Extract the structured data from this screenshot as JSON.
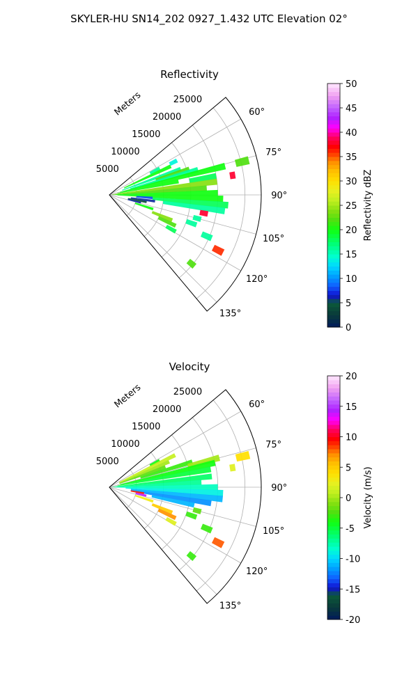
{
  "figure": {
    "title": "SKYLER-HU  SN14_202  0927_1.432 UTC Elevation 02°"
  },
  "chart_data": [
    {
      "type": "heatmap",
      "subtype": "polar-sector",
      "title": "Reflectivity",
      "radial_label": "Meters",
      "radial_ticks": [
        "5000",
        "10000",
        "15000",
        "20000",
        "25000"
      ],
      "radial_range": [
        0,
        28000
      ],
      "angle_ticks": [
        "60°",
        "75°",
        "90°",
        "105°",
        "120°",
        "135°"
      ],
      "angle_range": [
        50,
        140
      ],
      "grid": true,
      "colorbar": {
        "label": "Reflectivity dBZ",
        "range": [
          0,
          50
        ],
        "ticks": [
          "0",
          "5",
          "10",
          "15",
          "20",
          "25",
          "30",
          "35",
          "40",
          "45",
          "50"
        ]
      },
      "echoes": [
        {
          "az": 62,
          "r0": 8500,
          "r1": 10500,
          "v": 16
        },
        {
          "az": 63,
          "r0": 12500,
          "r1": 14000,
          "v": 14
        },
        {
          "az": 65,
          "r0": 3000,
          "r1": 12500,
          "v": 20
        },
        {
          "az": 70,
          "r0": 2500,
          "r1": 14000,
          "v": 16
        },
        {
          "az": 72,
          "r0": 9000,
          "r1": 15500,
          "v": 22
        },
        {
          "az": 74,
          "r0": 4000,
          "r1": 17000,
          "v": 16
        },
        {
          "az": 76,
          "r0": 2000,
          "r1": 22000,
          "v": 20
        },
        {
          "az": 76,
          "r0": 24000,
          "r1": 26500,
          "v": 22
        },
        {
          "az": 79,
          "r0": 1500,
          "r1": 13000,
          "v": 20
        },
        {
          "az": 80,
          "r0": 15000,
          "r1": 20000,
          "v": 18
        },
        {
          "az": 81,
          "r0": 22500,
          "r1": 23500,
          "v": 38
        },
        {
          "az": 83,
          "r0": 500,
          "r1": 20000,
          "v": 24
        },
        {
          "az": 86,
          "r0": 500,
          "r1": 18000,
          "v": 22
        },
        {
          "az": 89,
          "r0": 1000,
          "r1": 20000,
          "v": 20
        },
        {
          "az": 92,
          "r0": 1500,
          "r1": 21000,
          "v": 20
        },
        {
          "az": 94,
          "r0": 5000,
          "r1": 8000,
          "v": 8
        },
        {
          "az": 95,
          "r0": 8000,
          "r1": 22000,
          "v": 18
        },
        {
          "az": 98,
          "r0": 4000,
          "r1": 8500,
          "v": 6
        },
        {
          "az": 98,
          "r0": 10000,
          "r1": 21500,
          "v": 16
        },
        {
          "az": 101,
          "r0": 3500,
          "r1": 7000,
          "v": 4
        },
        {
          "az": 101,
          "r0": 17000,
          "r1": 18500,
          "v": 38
        },
        {
          "az": 104,
          "r0": 3500,
          "r1": 6000,
          "v": 6
        },
        {
          "az": 105,
          "r0": 16000,
          "r1": 17500,
          "v": 16
        },
        {
          "az": 108,
          "r0": 5000,
          "r1": 8500,
          "v": 20
        },
        {
          "az": 109,
          "r0": 15000,
          "r1": 17000,
          "v": 16
        },
        {
          "az": 112,
          "r0": 8500,
          "r1": 12500,
          "v": 24
        },
        {
          "az": 113,
          "r0": 18500,
          "r1": 20500,
          "v": 16
        },
        {
          "az": 115,
          "r0": 10000,
          "r1": 13500,
          "v": 22
        },
        {
          "az": 117,
          "r0": 21500,
          "r1": 23500,
          "v": 36
        },
        {
          "az": 119,
          "r0": 12000,
          "r1": 14000,
          "v": 18
        },
        {
          "az": 130,
          "r0": 19000,
          "r1": 20500,
          "v": 22
        }
      ]
    },
    {
      "type": "heatmap",
      "subtype": "polar-sector",
      "title": "Velocity",
      "radial_label": "Meters",
      "radial_ticks": [
        "5000",
        "10000",
        "15000",
        "20000",
        "25000"
      ],
      "radial_range": [
        0,
        28000
      ],
      "angle_ticks": [
        "60°",
        "75°",
        "90°",
        "105°",
        "120°",
        "135°"
      ],
      "angle_range": [
        50,
        140
      ],
      "grid": true,
      "colorbar": {
        "label": "Velocity (m/s)",
        "range": [
          -20,
          20
        ],
        "ticks": [
          "-20",
          "-15",
          "-10",
          "-5",
          "0",
          "5",
          "10",
          "15",
          "20"
        ]
      },
      "echoes": [
        {
          "az": 62,
          "r0": 8500,
          "r1": 10500,
          "v": -4
        },
        {
          "az": 64,
          "r0": 2000,
          "r1": 13500,
          "v": 1
        },
        {
          "az": 67,
          "r0": 2000,
          "r1": 12000,
          "v": 0
        },
        {
          "az": 70,
          "r0": 2000,
          "r1": 11000,
          "v": -2
        },
        {
          "az": 73,
          "r0": 6000,
          "r1": 16000,
          "v": -3
        },
        {
          "az": 75,
          "r0": 15000,
          "r1": 21000,
          "v": 0
        },
        {
          "az": 77,
          "r0": 2000,
          "r1": 20000,
          "v": -4
        },
        {
          "az": 77,
          "r0": 24000,
          "r1": 26500,
          "v": 4
        },
        {
          "az": 80,
          "r0": 1500,
          "r1": 19000,
          "v": -5
        },
        {
          "az": 81,
          "r0": 22500,
          "r1": 23500,
          "v": 2
        },
        {
          "az": 84,
          "r0": 500,
          "r1": 19000,
          "v": -6
        },
        {
          "az": 87,
          "r0": 500,
          "r1": 17000,
          "v": -7
        },
        {
          "az": 90,
          "r0": 1000,
          "r1": 20000,
          "v": -8
        },
        {
          "az": 93,
          "r0": 3000,
          "r1": 21000,
          "v": -9
        },
        {
          "az": 96,
          "r0": 4000,
          "r1": 21000,
          "v": -11
        },
        {
          "az": 99,
          "r0": 4000,
          "r1": 19000,
          "v": -12
        },
        {
          "az": 100,
          "r0": 4000,
          "r1": 6500,
          "v": 9
        },
        {
          "az": 102,
          "r0": 8000,
          "r1": 16000,
          "v": -11
        },
        {
          "az": 103,
          "r0": 5000,
          "r1": 7000,
          "v": 14
        },
        {
          "az": 105,
          "r0": 16000,
          "r1": 17500,
          "v": -2
        },
        {
          "az": 108,
          "r0": 5000,
          "r1": 8500,
          "v": 3
        },
        {
          "az": 109,
          "r0": 15000,
          "r1": 17000,
          "v": -3
        },
        {
          "az": 112,
          "r0": 8500,
          "r1": 12500,
          "v": 5
        },
        {
          "az": 113,
          "r0": 18500,
          "r1": 20500,
          "v": -3
        },
        {
          "az": 115,
          "r0": 10000,
          "r1": 13500,
          "v": 7
        },
        {
          "az": 117,
          "r0": 21500,
          "r1": 23500,
          "v": 8
        },
        {
          "az": 119,
          "r0": 12000,
          "r1": 14000,
          "v": 2
        },
        {
          "az": 130,
          "r0": 19000,
          "r1": 20500,
          "v": -3
        }
      ]
    }
  ]
}
